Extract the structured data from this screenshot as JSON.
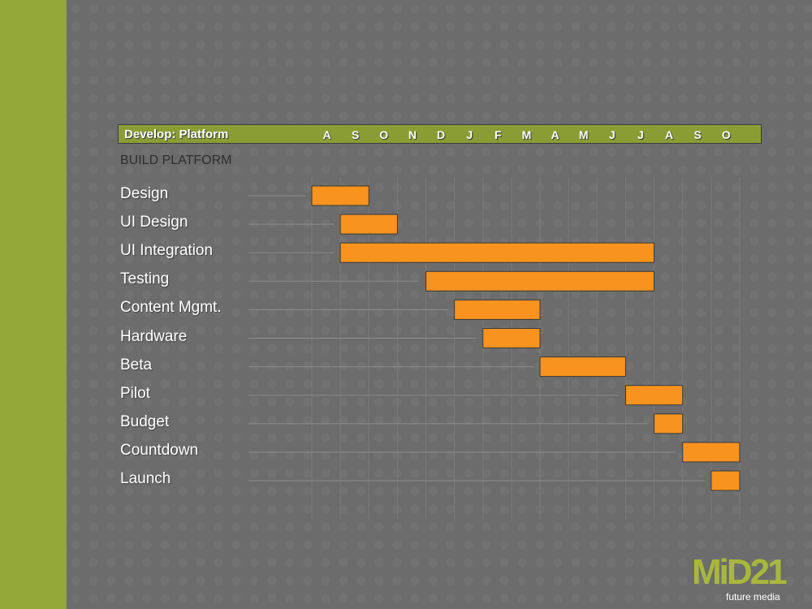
{
  "header": {
    "title": "Develop: Platform"
  },
  "section_title": "BUILD PLATFORM",
  "logo": {
    "text": "MiD21",
    "tagline": "future media"
  },
  "colors": {
    "bar": "#f7931e",
    "header": "#8a9d35",
    "stripe": "#94a83a"
  },
  "chart_data": {
    "type": "gantt",
    "title": "Develop: Platform",
    "months": [
      "A",
      "S",
      "O",
      "N",
      "D",
      "J",
      "F",
      "M",
      "A",
      "M",
      "J",
      "J",
      "A",
      "S",
      "O"
    ],
    "tasks": [
      {
        "name": "Design",
        "start": 0,
        "end": 2
      },
      {
        "name": "UI Design",
        "start": 1,
        "end": 3
      },
      {
        "name": "UI Integration",
        "start": 1,
        "end": 12
      },
      {
        "name": "Testing",
        "start": 4,
        "end": 12
      },
      {
        "name": "Content Mgmt.",
        "start": 5,
        "end": 8
      },
      {
        "name": "Hardware",
        "start": 6,
        "end": 8
      },
      {
        "name": "Beta",
        "start": 8,
        "end": 11
      },
      {
        "name": "Pilot",
        "start": 11,
        "end": 13
      },
      {
        "name": "Budget",
        "start": 12,
        "end": 13
      },
      {
        "name": "Countdown",
        "start": 13,
        "end": 15
      },
      {
        "name": "Launch",
        "start": 14,
        "end": 15
      }
    ]
  }
}
